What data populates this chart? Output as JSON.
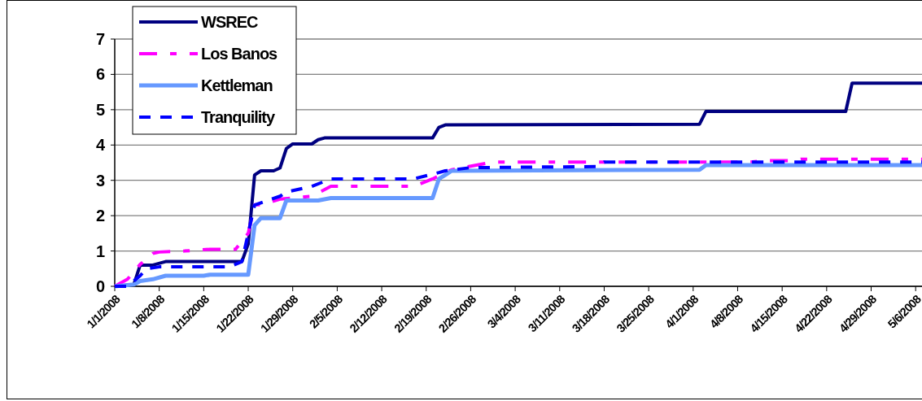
{
  "chart_data": {
    "type": "line",
    "xlim": [
      "2008-01-01",
      "2008-05-07"
    ],
    "xticks": [
      {
        "value": "2008-01-01",
        "label": "1/1/2008"
      },
      {
        "value": "2008-01-08",
        "label": "1/8/2008"
      },
      {
        "value": "2008-01-15",
        "label": "1/15/2008"
      },
      {
        "value": "2008-01-22",
        "label": "1/22/2008"
      },
      {
        "value": "2008-01-29",
        "label": "1/29/2008"
      },
      {
        "value": "2008-02-05",
        "label": "2/5/2008"
      },
      {
        "value": "2008-02-12",
        "label": "2/12/2008"
      },
      {
        "value": "2008-02-19",
        "label": "2/19/2008"
      },
      {
        "value": "2008-02-26",
        "label": "2/26/2008"
      },
      {
        "value": "2008-03-04",
        "label": "3/4/2008"
      },
      {
        "value": "2008-03-11",
        "label": "3/11/2008"
      },
      {
        "value": "2008-03-18",
        "label": "3/18/2008"
      },
      {
        "value": "2008-03-25",
        "label": "3/25/2008"
      },
      {
        "value": "2008-04-01",
        "label": "4/1/2008"
      },
      {
        "value": "2008-04-08",
        "label": "4/8/2008"
      },
      {
        "value": "2008-04-15",
        "label": "4/15/2008"
      },
      {
        "value": "2008-04-22",
        "label": "4/22/2008"
      },
      {
        "value": "2008-04-29",
        "label": "4/29/2008"
      },
      {
        "value": "2008-05-06",
        "label": "5/6/2008"
      }
    ],
    "ylim": [
      0,
      7
    ],
    "yticks": [
      0,
      1,
      2,
      3,
      4,
      5,
      6,
      7
    ],
    "grid": "y",
    "legend": "top left",
    "series": [
      {
        "name": "WSREC",
        "color": "#000080",
        "line_style": "solid",
        "x": [
          "2008-01-01",
          "2008-01-04",
          "2008-01-05",
          "2008-01-07",
          "2008-01-09",
          "2008-01-21",
          "2008-01-22",
          "2008-01-23",
          "2008-01-24",
          "2008-01-26",
          "2008-01-27",
          "2008-01-28",
          "2008-01-29",
          "2008-02-01",
          "2008-02-02",
          "2008-02-03",
          "2008-02-20",
          "2008-02-21",
          "2008-02-22",
          "2008-04-02",
          "2008-04-03",
          "2008-04-25",
          "2008-04-26",
          "2008-05-07"
        ],
        "values": [
          0,
          0.05,
          0.6,
          0.6,
          0.7,
          0.7,
          1.2,
          3.15,
          3.27,
          3.27,
          3.35,
          3.9,
          4.03,
          4.03,
          4.15,
          4.2,
          4.2,
          4.5,
          4.57,
          4.59,
          4.95,
          4.95,
          5.75,
          5.75
        ]
      },
      {
        "name": "Los Banos",
        "color": "#ff00ff",
        "line_style": "dashdot",
        "x": [
          "2008-01-01",
          "2008-01-03",
          "2008-01-05",
          "2008-01-07",
          "2008-01-08",
          "2008-01-12",
          "2008-01-16",
          "2008-01-20",
          "2008-01-22",
          "2008-01-23",
          "2008-01-24",
          "2008-01-27",
          "2008-02-01",
          "2008-02-04",
          "2008-02-17",
          "2008-02-20",
          "2008-02-23",
          "2008-02-29",
          "2008-03-01",
          "2008-04-10",
          "2008-04-13",
          "2008-04-17",
          "2008-04-18",
          "2008-05-07"
        ],
        "values": [
          0,
          0.2,
          0.62,
          0.93,
          0.97,
          1.0,
          1.05,
          1.05,
          1.5,
          2.31,
          2.31,
          2.47,
          2.55,
          2.83,
          2.83,
          3.04,
          3.3,
          3.5,
          3.52,
          3.52,
          3.56,
          3.56,
          3.6,
          3.6
        ]
      },
      {
        "name": "Kettleman",
        "color": "#6699ff",
        "line_style": "solid",
        "x": [
          "2008-01-01",
          "2008-01-04",
          "2008-01-05",
          "2008-01-07",
          "2008-01-09",
          "2008-01-15",
          "2008-01-16",
          "2008-01-22",
          "2008-01-23",
          "2008-01-24",
          "2008-01-27",
          "2008-01-28",
          "2008-02-02",
          "2008-02-04",
          "2008-02-20",
          "2008-02-21",
          "2008-02-22",
          "2008-02-23",
          "2008-04-02",
          "2008-04-03",
          "2008-05-07"
        ],
        "values": [
          0,
          0.05,
          0.15,
          0.2,
          0.3,
          0.3,
          0.33,
          0.33,
          1.73,
          1.93,
          1.93,
          2.43,
          2.43,
          2.5,
          2.5,
          3.04,
          3.15,
          3.27,
          3.3,
          3.43,
          3.43
        ]
      },
      {
        "name": "Tranquility",
        "color": "#0000ff",
        "line_style": "dashed",
        "x": [
          "2008-01-01",
          "2008-01-03",
          "2008-01-05",
          "2008-01-06",
          "2008-01-08",
          "2008-01-19",
          "2008-01-21",
          "2008-01-22",
          "2008-01-23",
          "2008-01-27",
          "2008-01-28",
          "2008-02-01",
          "2008-02-04",
          "2008-02-17",
          "2008-02-21",
          "2008-02-22",
          "2008-02-26",
          "2008-03-17",
          "2008-03-18",
          "2008-05-07"
        ],
        "values": [
          0,
          0,
          0.3,
          0.5,
          0.55,
          0.55,
          0.7,
          1.5,
          2.3,
          2.55,
          2.67,
          2.83,
          3.04,
          3.04,
          3.22,
          3.27,
          3.36,
          3.39,
          3.52,
          3.52
        ]
      }
    ]
  }
}
